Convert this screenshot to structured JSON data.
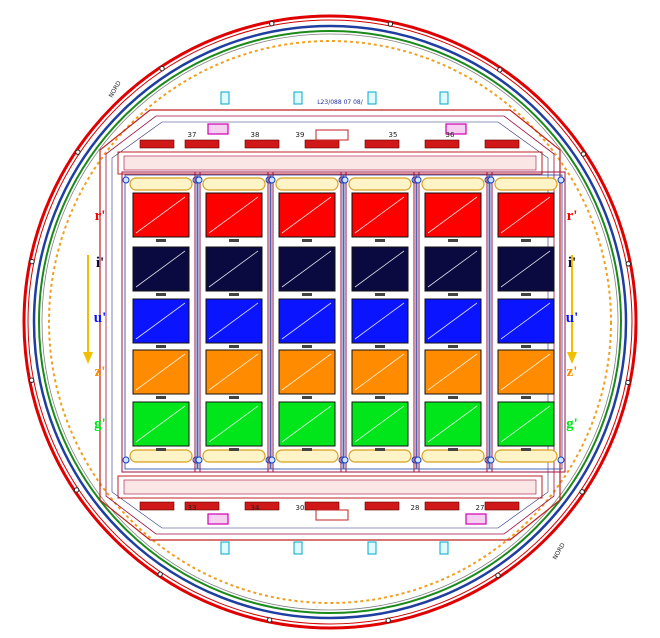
{
  "diagram": {
    "title_strip": "L23/088 07 08/",
    "filters_left": [
      "r'",
      "i'",
      "u'",
      "z'",
      "g'"
    ],
    "filters_right": [
      "r'",
      "i'",
      "u'",
      "z'",
      "g'"
    ],
    "filter_colors": [
      "#ff0000",
      "#0a0a40",
      "#0a14ff",
      "#ff8c00",
      "#00e61a"
    ],
    "ring_colors": {
      "outer": "#e00000",
      "blue": "#1f3fa0",
      "green": "#1a8a1a",
      "orange_dashed": "#f0a020"
    },
    "top_labels": [
      "37",
      "38",
      "39",
      "35",
      "36"
    ],
    "bottom_labels": [
      "33",
      "34",
      "30",
      "28",
      "27"
    ],
    "side_stamp_left": "NORD",
    "side_stamp_right": "NORD",
    "arrow_color": "#f0c000"
  }
}
